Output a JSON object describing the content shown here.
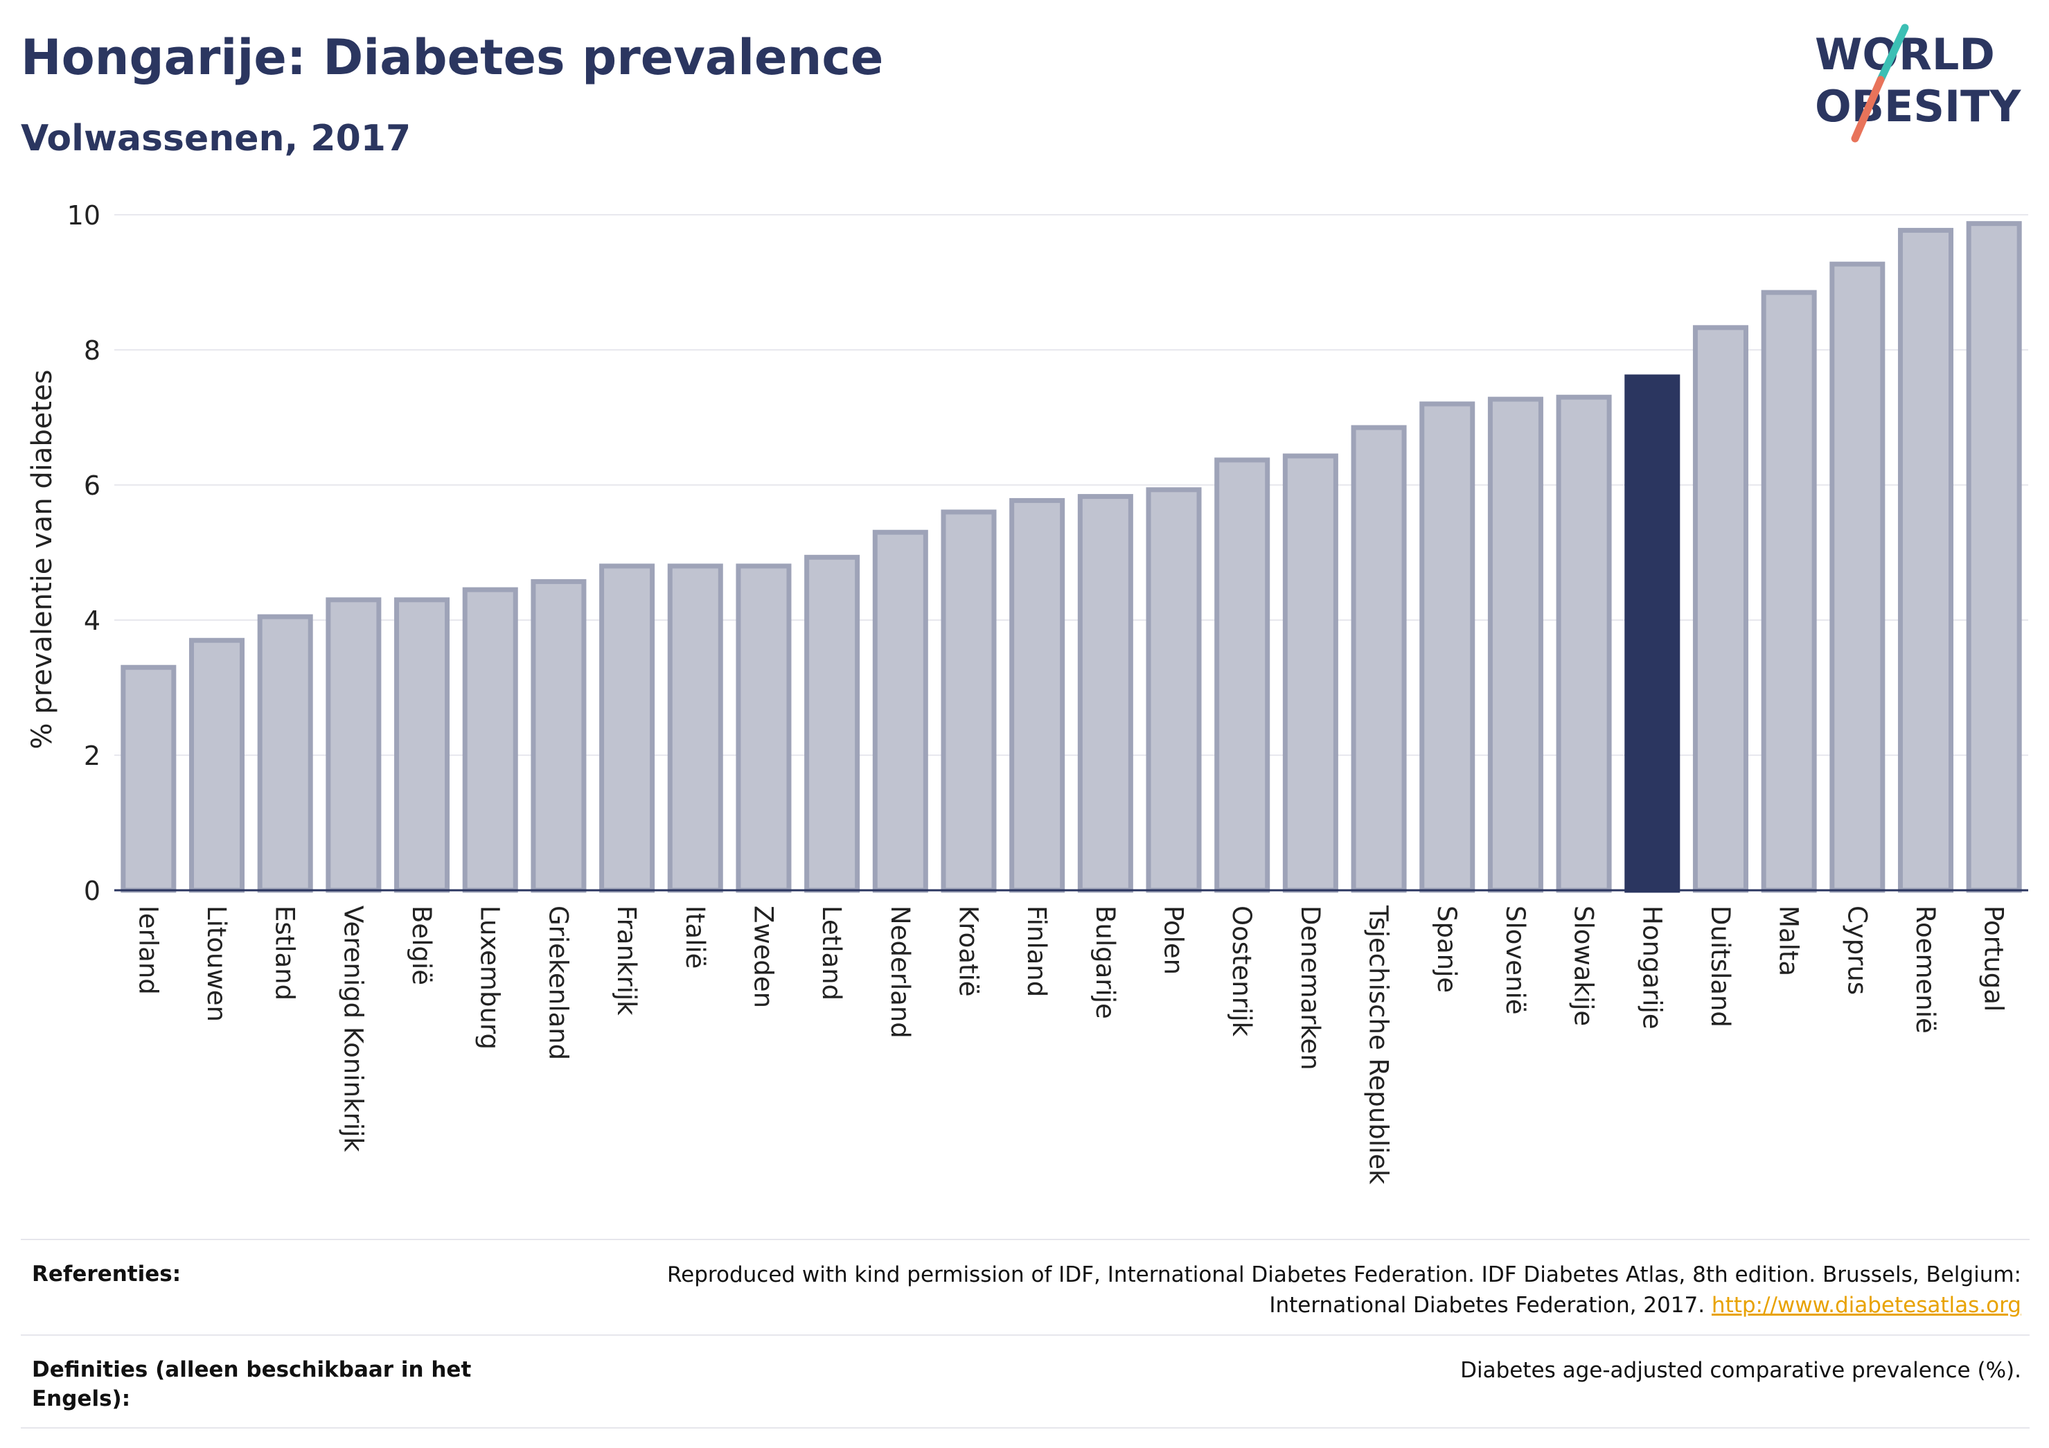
{
  "header": {
    "title": "Hongarije: Diabetes prevalence",
    "subtitle": "Volwassenen, 2017"
  },
  "logo": {
    "line1": "WORLD",
    "line2": "OBESITY"
  },
  "colors": {
    "title": "#2b3660",
    "bar_default": "#c0c3d0",
    "bar_default_stroke": "#9ea3b8",
    "bar_highlight": "#2b3660",
    "logo_slash_top": "#3cbfb4",
    "logo_slash_bottom": "#e8735a",
    "link": "#e8a200"
  },
  "chart_data": {
    "type": "bar",
    "ylabel": "% prevalentie van diabetes",
    "xlabel": "",
    "ylim": [
      0,
      10
    ],
    "yticks": [
      0,
      2,
      4,
      6,
      8,
      10
    ],
    "grid": true,
    "highlight": "Hongarije",
    "categories": [
      "Ierland",
      "Litouwen",
      "Estland",
      "Verenigd Koninkrijk",
      "België",
      "Luxemburg",
      "Griekenland",
      "Frankrijk",
      "Italië",
      "Zweden",
      "Letland",
      "Nederland",
      "Kroatië",
      "Finland",
      "Bulgarije",
      "Polen",
      "Oostenrijk",
      "Denemarken",
      "Tsjechische Republiek",
      "Spanje",
      "Slovenië",
      "Slowakije",
      "Hongarije",
      "Duitsland",
      "Malta",
      "Cyprus",
      "Roemenië",
      "Portugal"
    ],
    "values": [
      3.3,
      3.7,
      4.05,
      4.3,
      4.3,
      4.45,
      4.57,
      4.8,
      4.8,
      4.8,
      4.93,
      5.3,
      5.6,
      5.77,
      5.83,
      5.93,
      6.37,
      6.43,
      6.85,
      7.2,
      7.27,
      7.3,
      7.6,
      8.33,
      8.85,
      9.27,
      9.77,
      9.87
    ]
  },
  "references": {
    "label": "Referenties:",
    "text": "Reproduced with kind permission of IDF, International Diabetes Federation. IDF Diabetes Atlas, 8th edition. Brussels, Belgium: International Diabetes Federation, 2017.",
    "link": "http://www.diabetesatlas.org"
  },
  "definitions": {
    "label": "Definities (alleen beschikbaar in het Engels):",
    "text": "Diabetes age-adjusted comparative prevalence (%)."
  }
}
